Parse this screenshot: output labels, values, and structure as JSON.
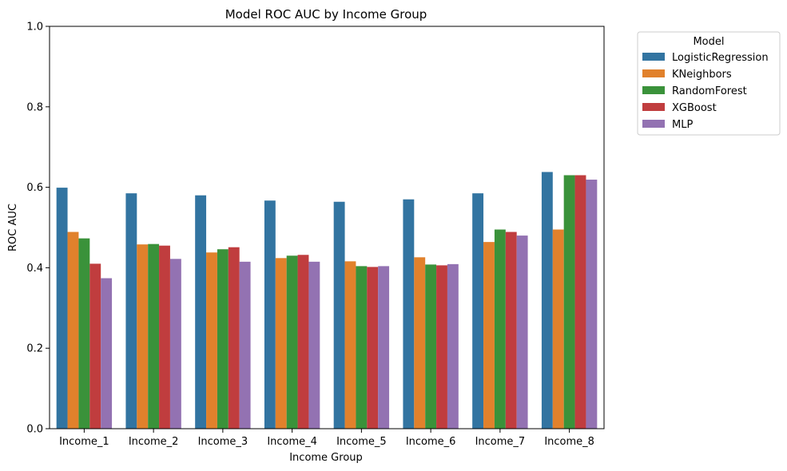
{
  "chart_data": {
    "type": "bar",
    "title": "Model ROC AUC by Income Group",
    "xlabel": "Income Group",
    "ylabel": "ROC AUC",
    "ylim": [
      0,
      1.0
    ],
    "yticks": [
      "0.0",
      "0.2",
      "0.4",
      "0.6",
      "0.8",
      "1.0"
    ],
    "categories": [
      "Income_1",
      "Income_2",
      "Income_3",
      "Income_4",
      "Income_5",
      "Income_6",
      "Income_7",
      "Income_8"
    ],
    "legend_title": "Model",
    "legend_position": "outside-top-right",
    "series": [
      {
        "name": "LogisticRegression",
        "color": "#3274a1",
        "values": [
          0.599,
          0.585,
          0.58,
          0.567,
          0.564,
          0.57,
          0.585,
          0.638
        ]
      },
      {
        "name": "KNeighbors",
        "color": "#e1812c",
        "values": [
          0.489,
          0.458,
          0.438,
          0.424,
          0.416,
          0.426,
          0.464,
          0.495
        ]
      },
      {
        "name": "RandomForest",
        "color": "#3a923a",
        "values": [
          0.473,
          0.459,
          0.446,
          0.43,
          0.404,
          0.408,
          0.495,
          0.63
        ]
      },
      {
        "name": "XGBoost",
        "color": "#c03d3e",
        "values": [
          0.41,
          0.455,
          0.451,
          0.432,
          0.402,
          0.406,
          0.489,
          0.63
        ]
      },
      {
        "name": "MLP",
        "color": "#9372b2",
        "values": [
          0.374,
          0.422,
          0.415,
          0.415,
          0.404,
          0.409,
          0.48,
          0.619
        ]
      }
    ]
  }
}
